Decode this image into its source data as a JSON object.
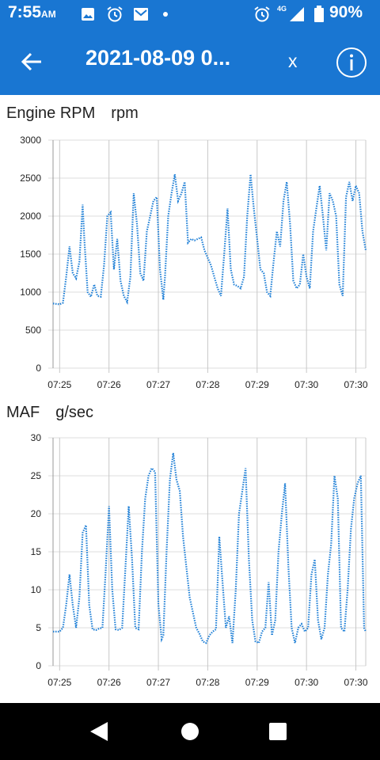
{
  "status_bar": {
    "time": "7:55",
    "ampm": "AM",
    "network": "4G",
    "battery": "90%",
    "icons": [
      "image-icon",
      "alarm-icon",
      "gmail-icon",
      "dot-icon",
      "alarm-icon",
      "signal-icon",
      "battery-icon"
    ]
  },
  "app_bar": {
    "title": "2021-08-09 0...",
    "close_label": "x",
    "icons": {
      "back": "back-arrow-icon",
      "info": "info-icon"
    },
    "color": "#1976d2"
  },
  "chart_data": [
    {
      "type": "line",
      "title": "Engine RPM",
      "unit": "rpm",
      "ylim": [
        0,
        3000
      ],
      "yticks": [
        "0",
        "500",
        "1000",
        "1500",
        "2000",
        "2500",
        "3000"
      ],
      "xticks": [
        "07:25",
        "07:26",
        "07:27",
        "07:28",
        "07:29",
        "07:30",
        "07:30"
      ],
      "grid": true,
      "line_style": "dotted",
      "color": "#1e7fd6",
      "x_start": "07:24:52",
      "x_end": "07:31:12",
      "series": [
        {
          "x": [
            "07:24:52",
            "07:25:00",
            "07:25:04",
            "07:25:08",
            "07:25:12",
            "07:25:16",
            "07:25:20",
            "07:25:24",
            "07:25:28",
            "07:25:30",
            "07:25:34",
            "07:25:38",
            "07:25:42",
            "07:25:46",
            "07:25:50",
            "07:25:54",
            "07:25:58",
            "07:26:02",
            "07:26:06",
            "07:26:10",
            "07:26:14",
            "07:26:18",
            "07:26:22",
            "07:26:26",
            "07:26:30",
            "07:26:34",
            "07:26:38",
            "07:26:42",
            "07:26:46",
            "07:26:50",
            "07:26:54",
            "07:26:58",
            "07:27:02",
            "07:27:06",
            "07:27:08",
            "07:27:12",
            "07:27:16",
            "07:27:20",
            "07:27:24",
            "07:27:28",
            "07:27:32",
            "07:27:36",
            "07:27:40",
            "07:27:44",
            "07:27:48",
            "07:27:52",
            "07:27:56",
            "07:28:00",
            "07:28:04",
            "07:28:08",
            "07:28:12",
            "07:28:16",
            "07:28:20",
            "07:28:24",
            "07:28:28",
            "07:28:32",
            "07:28:36",
            "07:28:40",
            "07:28:44",
            "07:28:48",
            "07:28:52",
            "07:28:56",
            "07:29:00",
            "07:29:04",
            "07:29:08",
            "07:29:12",
            "07:29:16",
            "07:29:20",
            "07:29:24",
            "07:29:28",
            "07:29:32",
            "07:29:36",
            "07:29:40",
            "07:29:44",
            "07:29:48",
            "07:29:52",
            "07:29:56",
            "07:30:00",
            "07:30:04",
            "07:30:08",
            "07:30:12",
            "07:30:16",
            "07:30:20",
            "07:30:24",
            "07:30:28",
            "07:30:32",
            "07:30:36",
            "07:30:40",
            "07:30:44",
            "07:30:48",
            "07:30:52",
            "07:30:56",
            "07:31:00",
            "07:31:04",
            "07:31:08",
            "07:31:12"
          ],
          "y": [
            850,
            840,
            860,
            1200,
            1600,
            1250,
            1180,
            1400,
            2150,
            1700,
            1000,
            940,
            1100,
            950,
            940,
            1350,
            2000,
            2050,
            1300,
            1700,
            1150,
            950,
            870,
            1200,
            2300,
            1900,
            1250,
            1150,
            1800,
            2000,
            2200,
            2250,
            1300,
            900,
            1200,
            2000,
            2300,
            2550,
            2200,
            2300,
            2450,
            1650,
            1700,
            1680,
            1700,
            1720,
            1550,
            1450,
            1350,
            1200,
            1050,
            950,
            1500,
            2100,
            1300,
            1100,
            1080,
            1050,
            1200,
            2000,
            2550,
            2100,
            1700,
            1300,
            1250,
            1000,
            950,
            1400,
            1800,
            1600,
            2200,
            2450,
            1900,
            1150,
            1050,
            1100,
            1500,
            1200,
            1050,
            1800,
            2100,
            2400,
            2000,
            1550,
            2300,
            2200,
            2000,
            1100,
            950,
            2250,
            2450,
            2200,
            2400,
            2300,
            1800,
            1550
          ]
        }
      ]
    },
    {
      "type": "line",
      "title": "MAF",
      "unit": "g/sec",
      "ylim": [
        0,
        30
      ],
      "yticks": [
        "0",
        "5",
        "10",
        "15",
        "20",
        "25",
        "30"
      ],
      "xticks": [
        "07:25",
        "07:26",
        "07:27",
        "07:28",
        "07:29",
        "07:30",
        "07:30"
      ],
      "grid": true,
      "line_style": "dotted",
      "color": "#1e7fd6",
      "x_start": "07:24:52",
      "x_end": "07:31:12",
      "series": [
        {
          "x": [
            "07:24:52",
            "07:25:00",
            "07:25:04",
            "07:25:08",
            "07:25:12",
            "07:25:16",
            "07:25:20",
            "07:25:24",
            "07:25:28",
            "07:25:32",
            "07:25:36",
            "07:25:40",
            "07:25:44",
            "07:25:48",
            "07:25:52",
            "07:25:56",
            "07:26:00",
            "07:26:04",
            "07:26:08",
            "07:26:12",
            "07:26:16",
            "07:26:20",
            "07:26:24",
            "07:26:28",
            "07:26:32",
            "07:26:36",
            "07:26:40",
            "07:26:44",
            "07:26:48",
            "07:26:52",
            "07:26:56",
            "07:27:00",
            "07:27:04",
            "07:27:06",
            "07:27:10",
            "07:27:14",
            "07:27:18",
            "07:27:22",
            "07:27:26",
            "07:27:30",
            "07:27:34",
            "07:27:38",
            "07:27:42",
            "07:27:46",
            "07:27:50",
            "07:27:54",
            "07:27:58",
            "07:28:02",
            "07:28:06",
            "07:28:10",
            "07:28:14",
            "07:28:18",
            "07:28:22",
            "07:28:26",
            "07:28:30",
            "07:28:34",
            "07:28:38",
            "07:28:42",
            "07:28:46",
            "07:28:50",
            "07:28:54",
            "07:28:58",
            "07:29:02",
            "07:29:06",
            "07:29:10",
            "07:29:14",
            "07:29:18",
            "07:29:22",
            "07:29:26",
            "07:29:30",
            "07:29:34",
            "07:29:38",
            "07:29:42",
            "07:29:46",
            "07:29:50",
            "07:29:54",
            "07:29:58",
            "07:30:02",
            "07:30:06",
            "07:30:10",
            "07:30:14",
            "07:30:18",
            "07:30:22",
            "07:30:26",
            "07:30:30",
            "07:30:34",
            "07:30:38",
            "07:30:42",
            "07:30:46",
            "07:30:50",
            "07:30:54",
            "07:30:58",
            "07:31:02",
            "07:31:06",
            "07:31:10",
            "07:31:12"
          ],
          "y": [
            4.5,
            4.5,
            5.0,
            8.0,
            12.0,
            8.0,
            5.0,
            9.0,
            17.5,
            18.5,
            8.0,
            4.8,
            4.7,
            4.9,
            5.0,
            12.5,
            21.0,
            10.0,
            4.8,
            4.7,
            5.0,
            13.0,
            21.0,
            14.0,
            5.0,
            4.8,
            15.0,
            22.0,
            25.0,
            26.0,
            25.5,
            8.0,
            3.5,
            4.0,
            15.0,
            24.5,
            28.0,
            24.5,
            23.0,
            17.0,
            13.0,
            9.0,
            7.0,
            5.0,
            4.2,
            3.2,
            3.0,
            4.0,
            4.5,
            4.8,
            17.0,
            11.0,
            5.0,
            6.5,
            3.0,
            10.0,
            20.0,
            23.0,
            26.0,
            14.0,
            6.0,
            3.2,
            3.0,
            4.5,
            5.0,
            11.0,
            4.0,
            6.0,
            15.0,
            20.0,
            24.0,
            13.0,
            5.0,
            3.0,
            5.0,
            5.5,
            4.5,
            5.0,
            12.0,
            14.0,
            6.0,
            3.5,
            5.0,
            12.0,
            16.0,
            25.0,
            22.0,
            5.0,
            4.5,
            10.0,
            18.0,
            22.0,
            24.0,
            25.0,
            5.0,
            4.5
          ]
        }
      ]
    }
  ]
}
